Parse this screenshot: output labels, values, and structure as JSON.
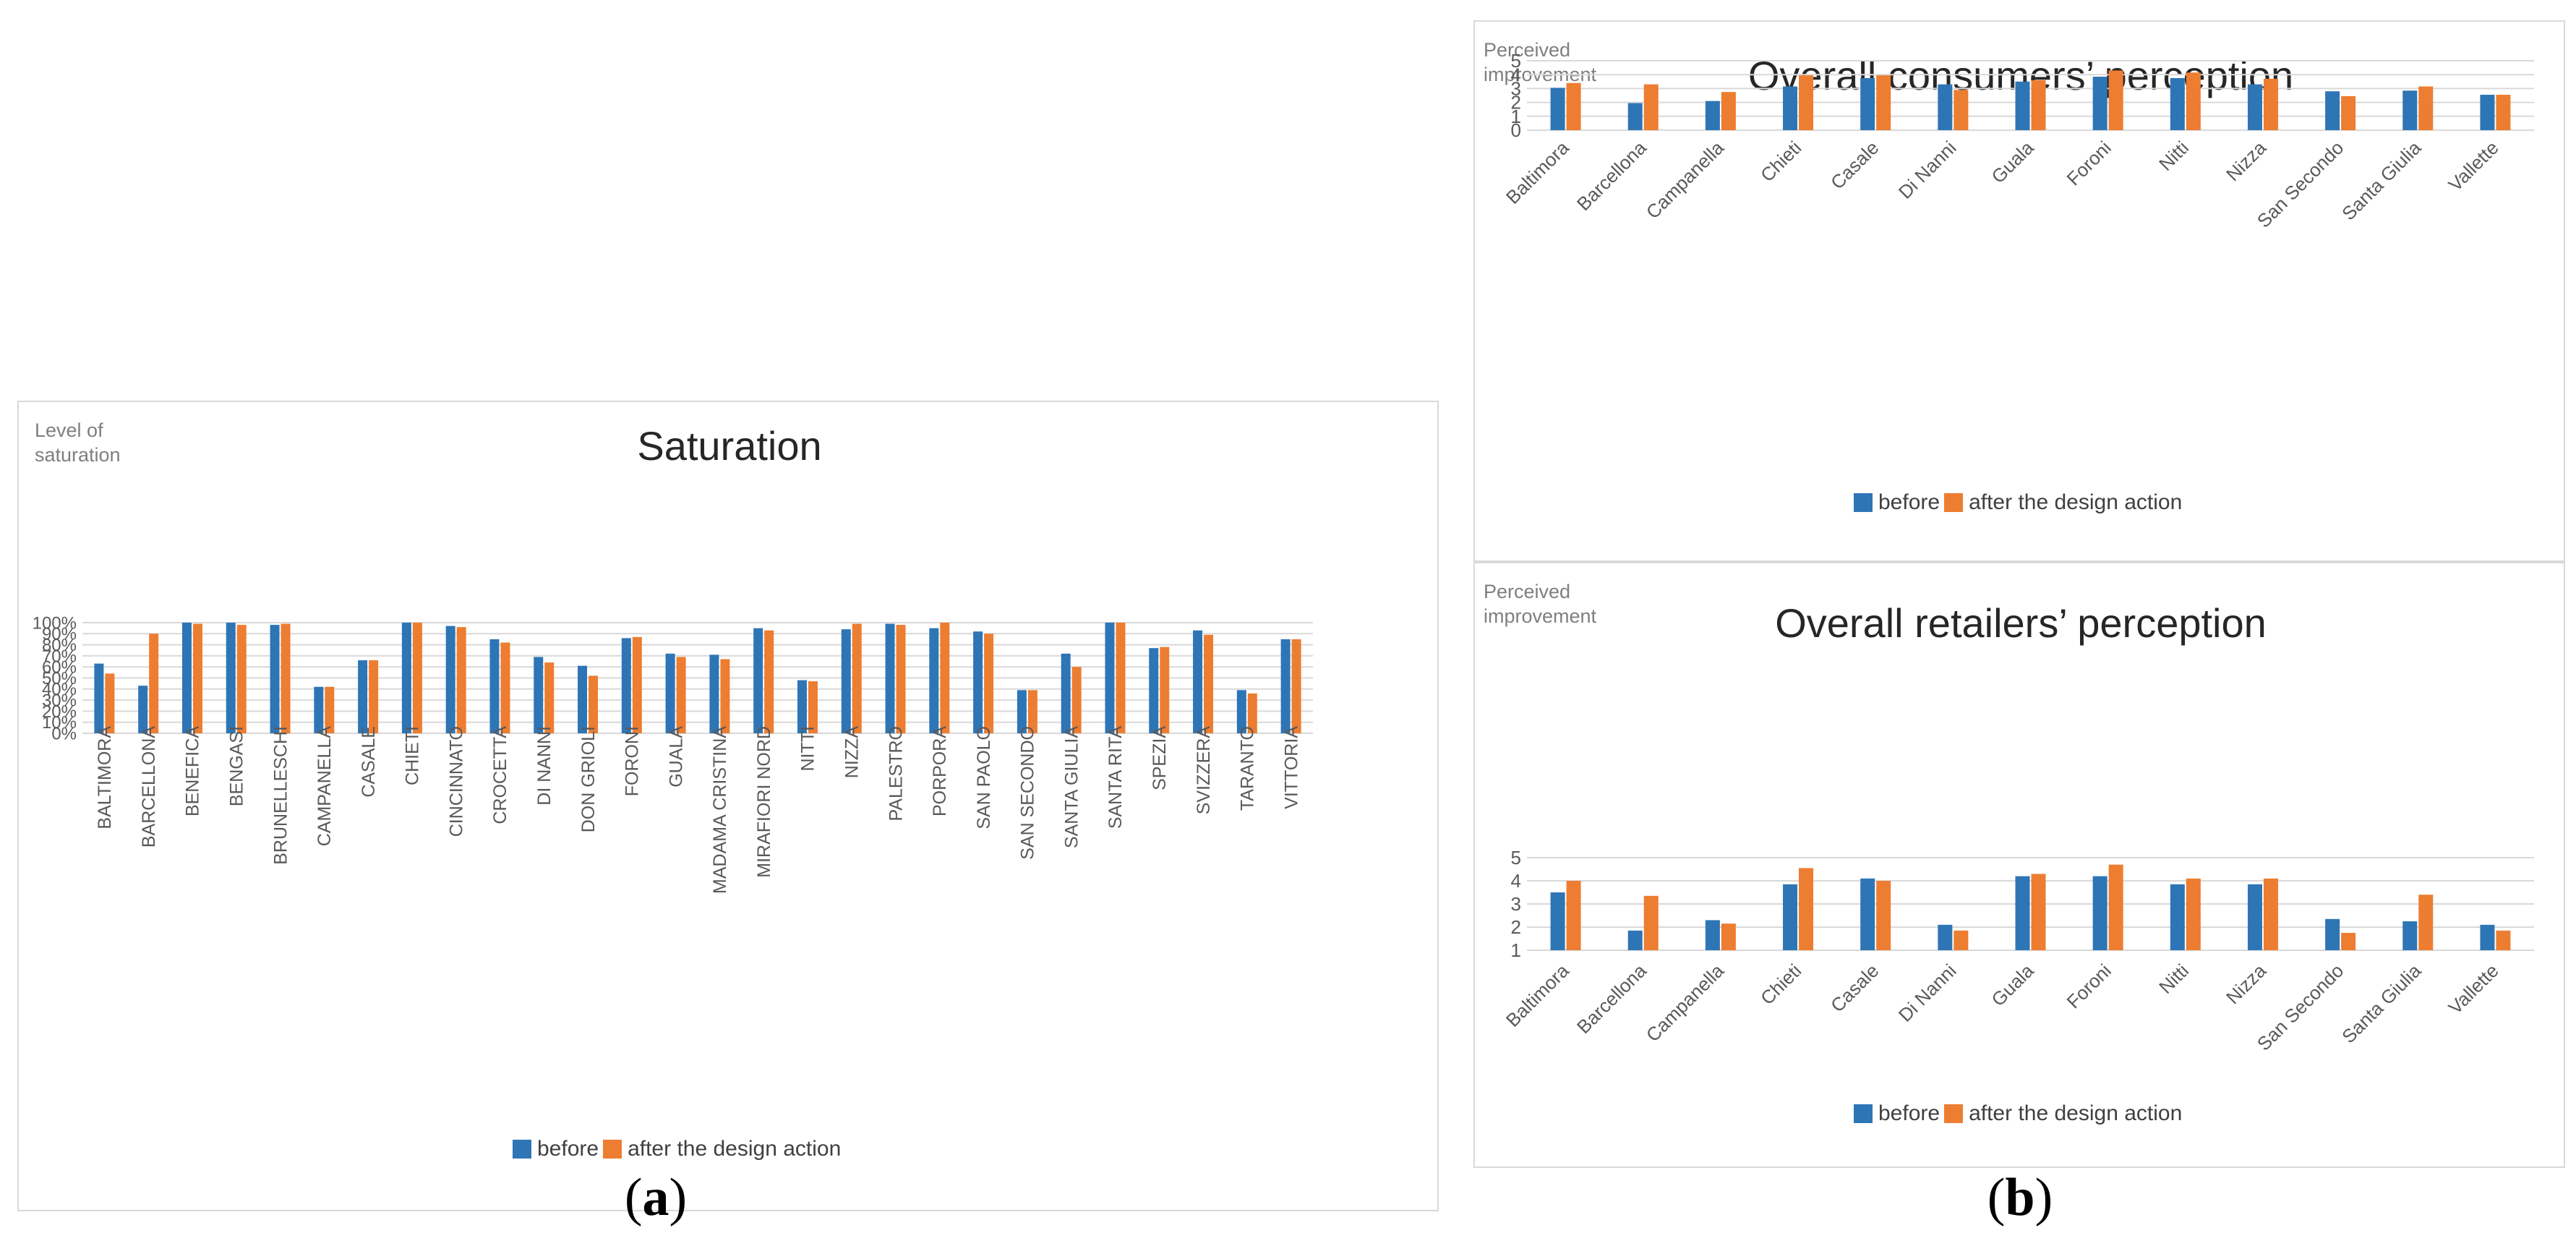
{
  "colors": {
    "before": "#2e75b6",
    "after": "#ed7d31",
    "grid": "#d9d9d9",
    "axis_text": "#595959"
  },
  "legend": {
    "before": "before",
    "after": "after the design action"
  },
  "sublabels": {
    "a": "a",
    "b": "b"
  },
  "chart_data": [
    {
      "type": "bar",
      "title": "Saturation",
      "ylabel": "Level of\nsaturation",
      "ylim": [
        0,
        100
      ],
      "yticks": [
        "0%",
        "10%",
        "20%",
        "30%",
        "40%",
        "50%",
        "60%",
        "70%",
        "80%",
        "90%",
        "100%"
      ],
      "grid": true,
      "legend_position": "bottom",
      "categories": [
        "BALTIMORA",
        "BARCELLONA",
        "BENEFICA",
        "BENGASI",
        "BRUNELLESCHI",
        "CAMPANELLA",
        "CASALE",
        "CHIETI",
        "CINCINNATO",
        "CROCETTA",
        "DI NANNI",
        "DON GRIOLI",
        "FORONI",
        "GUALA",
        "MADAMA CRISTINA",
        "MIRAFIORI NORD",
        "NITTI",
        "NIZZA",
        "PALESTRO",
        "PORPORA",
        "SAN PAOLO",
        "SAN SECONDO",
        "SANTA GIULIA",
        "SANTA RITA",
        "SPEZIA",
        "SVIZZERA",
        "TARANTO",
        "VITTORIA"
      ],
      "series": [
        {
          "name": "before",
          "values": [
            63,
            43,
            100,
            100,
            98,
            42,
            66,
            100,
            97,
            85,
            69,
            61,
            86,
            72,
            71,
            95,
            48,
            94,
            99,
            95,
            92,
            39,
            72,
            100,
            77,
            93,
            39,
            85
          ]
        },
        {
          "name": "after the design action",
          "values": [
            54,
            90,
            99,
            98,
            99,
            42,
            66,
            100,
            96,
            82,
            64,
            52,
            87,
            69,
            67,
            93,
            47,
            99,
            98,
            100,
            90,
            39,
            60,
            100,
            78,
            89,
            36,
            85
          ]
        }
      ]
    },
    {
      "type": "bar",
      "title": "Overall consumers’ perception",
      "ylabel": "Perceived\nimprovement",
      "ylim": [
        0,
        5
      ],
      "yticks": [
        "0",
        "1",
        "2",
        "3",
        "4",
        "5"
      ],
      "grid": true,
      "legend_position": "bottom",
      "categories": [
        "Baltimora",
        "Barcellona",
        "Campanella",
        "Chieti",
        "Casale",
        "Di Nanni",
        "Guala",
        "Foroni",
        "Nitti",
        "Nizza",
        "San Secondo",
        "Santa Giulia",
        "Vallette"
      ],
      "series": [
        {
          "name": "before",
          "values": [
            3.05,
            1.95,
            2.1,
            3.15,
            3.75,
            3.3,
            3.5,
            3.85,
            3.75,
            3.3,
            2.8,
            2.85,
            2.55
          ]
        },
        {
          "name": "after the design action",
          "values": [
            3.4,
            3.3,
            2.75,
            3.95,
            3.95,
            2.9,
            3.6,
            4.3,
            4.15,
            3.7,
            2.45,
            3.15,
            2.55
          ]
        }
      ]
    },
    {
      "type": "bar",
      "title": "Overall retailers’ perception",
      "ylabel": "Perceived\nimprovement",
      "ylim": [
        1,
        5
      ],
      "yticks": [
        "1",
        "2",
        "3",
        "4",
        "5"
      ],
      "grid": true,
      "legend_position": "bottom",
      "categories": [
        "Baltimora",
        "Barcellona",
        "Campanella",
        "Chieti",
        "Casale",
        "Di Nanni",
        "Guala",
        "Foroni",
        "Nitti",
        "Nizza",
        "San Secondo",
        "Santa Giulia",
        "Vallette"
      ],
      "series": [
        {
          "name": "before",
          "values": [
            3.5,
            1.85,
            2.3,
            3.85,
            4.1,
            2.1,
            4.2,
            4.2,
            3.85,
            3.85,
            2.35,
            2.25,
            2.1
          ]
        },
        {
          "name": "after the design action",
          "values": [
            4.0,
            3.35,
            2.15,
            4.55,
            4.0,
            1.85,
            4.3,
            4.7,
            4.1,
            4.1,
            1.75,
            3.4,
            1.85
          ]
        }
      ]
    }
  ]
}
